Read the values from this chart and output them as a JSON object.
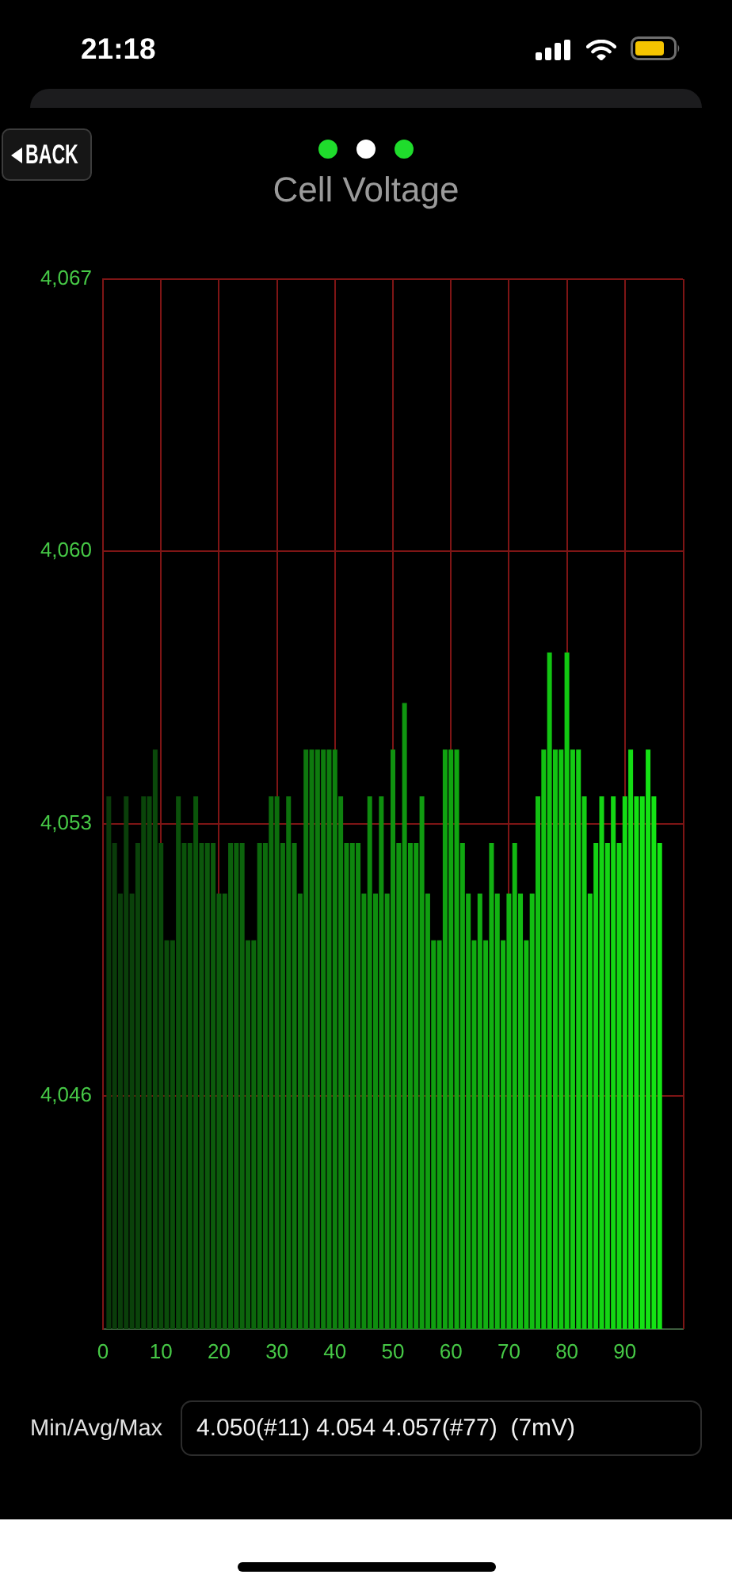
{
  "chart_data": {
    "type": "bar",
    "title": "Cell Voltage",
    "annotations": [
      "21:18",
      "BACK",
      "Min/Avg/Max",
      "4.050(#11) 4.054 4.057(#77)  (7mV)"
    ],
    "x": [
      1,
      2,
      3,
      4,
      5,
      6,
      7,
      8,
      9,
      10,
      11,
      12,
      13,
      14,
      15,
      16,
      17,
      18,
      19,
      20,
      21,
      22,
      23,
      24,
      25,
      26,
      27,
      28,
      29,
      30,
      31,
      32,
      33,
      34,
      35,
      36,
      37,
      38,
      39,
      40,
      41,
      42,
      43,
      44,
      45,
      46,
      47,
      48,
      49,
      50,
      51,
      52,
      53,
      54,
      55,
      56,
      57,
      58,
      59,
      60,
      61,
      62,
      63,
      64,
      65,
      66,
      67,
      68,
      69,
      70,
      71,
      72,
      73,
      74,
      75,
      76,
      77,
      78,
      79,
      80,
      81,
      82,
      83,
      84,
      85,
      86,
      87,
      88,
      89,
      90,
      91,
      92,
      93,
      94,
      95,
      96
    ],
    "values": [
      4053.7,
      4052.5,
      4051.2,
      4053.7,
      4051.2,
      4052.5,
      4053.7,
      4053.7,
      4054.9,
      4052.5,
      4050.0,
      4050.0,
      4053.7,
      4052.5,
      4052.5,
      4053.7,
      4052.5,
      4052.5,
      4052.5,
      4051.2,
      4051.2,
      4052.5,
      4052.5,
      4052.5,
      4050.0,
      4050.0,
      4052.5,
      4052.5,
      4053.7,
      4053.7,
      4052.5,
      4053.7,
      4052.5,
      4051.2,
      4054.9,
      4054.9,
      4054.9,
      4054.9,
      4054.9,
      4054.9,
      4053.7,
      4052.5,
      4052.5,
      4052.5,
      4051.2,
      4053.7,
      4051.2,
      4053.7,
      4051.2,
      4054.9,
      4052.5,
      4056.1,
      4052.5,
      4052.5,
      4053.7,
      4051.2,
      4050.0,
      4050.0,
      4054.9,
      4054.9,
      4054.9,
      4052.5,
      4051.2,
      4050.0,
      4051.2,
      4050.0,
      4052.5,
      4051.2,
      4050.0,
      4051.2,
      4052.5,
      4051.2,
      4050.0,
      4051.2,
      4053.7,
      4054.9,
      4057.4,
      4054.9,
      4054.9,
      4057.4,
      4054.9,
      4054.9,
      4053.7,
      4051.2,
      4052.5,
      4053.7,
      4052.5,
      4053.7,
      4052.5,
      4053.7,
      4054.9,
      4053.7,
      4053.7,
      4054.9,
      4053.7,
      4052.5
    ],
    "colors": [
      "#0a3a0a",
      "#0a3c0a",
      "#0a3e0a",
      "#0a3f0a",
      "#0a410a",
      "#0a430a",
      "#0a450a",
      "#0a470a",
      "#0a480a",
      "#0a4a0a",
      "#0a4c0a",
      "#0a4e0a",
      "#0a500a",
      "#0a520a",
      "#0a530a",
      "#0a550a",
      "#0c570c",
      "#0c590c",
      "#0c5b0c",
      "#0c5c0c",
      "#0c5e0c",
      "#0c600c",
      "#0c620c",
      "#0c640c",
      "#0c650c",
      "#0c670c",
      "#0c690c",
      "#0c6b0c",
      "#0c6d0c",
      "#0c6e0c",
      "#0c700c",
      "#0c720c",
      "#0e740e",
      "#0e760e",
      "#0e780e",
      "#0e790e",
      "#0e7b0e",
      "#0e7d0e",
      "#0e7f0e",
      "#0e810e",
      "#0e820e",
      "#0e840e",
      "#0e860e",
      "#0e880e",
      "#0e8a0e",
      "#0e8b0e",
      "#0e8d0e",
      "#0e8f0e",
      "#109110",
      "#109310",
      "#109510",
      "#109610",
      "#109810",
      "#109a10",
      "#109c10",
      "#109e10",
      "#109f10",
      "#10a110",
      "#10a310",
      "#10a510",
      "#10a710",
      "#10a810",
      "#10aa10",
      "#10ac10",
      "#12ae12",
      "#12b012",
      "#12b112",
      "#12b312",
      "#12b512",
      "#12b712",
      "#12b912",
      "#12bb12",
      "#12bc12",
      "#12be12",
      "#12c012",
      "#12c212",
      "#12c412",
      "#12c512",
      "#12c712",
      "#12c912",
      "#14cb14",
      "#14cd14",
      "#14ce14",
      "#14d014",
      "#14d214",
      "#14d414",
      "#14d614",
      "#14d714",
      "#14d914",
      "#14db14",
      "#14dd14",
      "#14df14",
      "#14e114",
      "#14e214",
      "#14e414",
      "#14e614"
    ],
    "xlim": [
      0,
      100
    ],
    "xticks": [
      0,
      10,
      20,
      30,
      40,
      50,
      60,
      70,
      80,
      90
    ],
    "ylim": [
      4040,
      4067
    ],
    "yticks": [
      {
        "value": 4046,
        "label": "4,046"
      },
      {
        "value": 4053,
        "label": "4,053"
      },
      {
        "value": 4060,
        "label": "4,060"
      },
      {
        "value": 4067,
        "label": "4,067"
      }
    ],
    "grid": true
  }
}
